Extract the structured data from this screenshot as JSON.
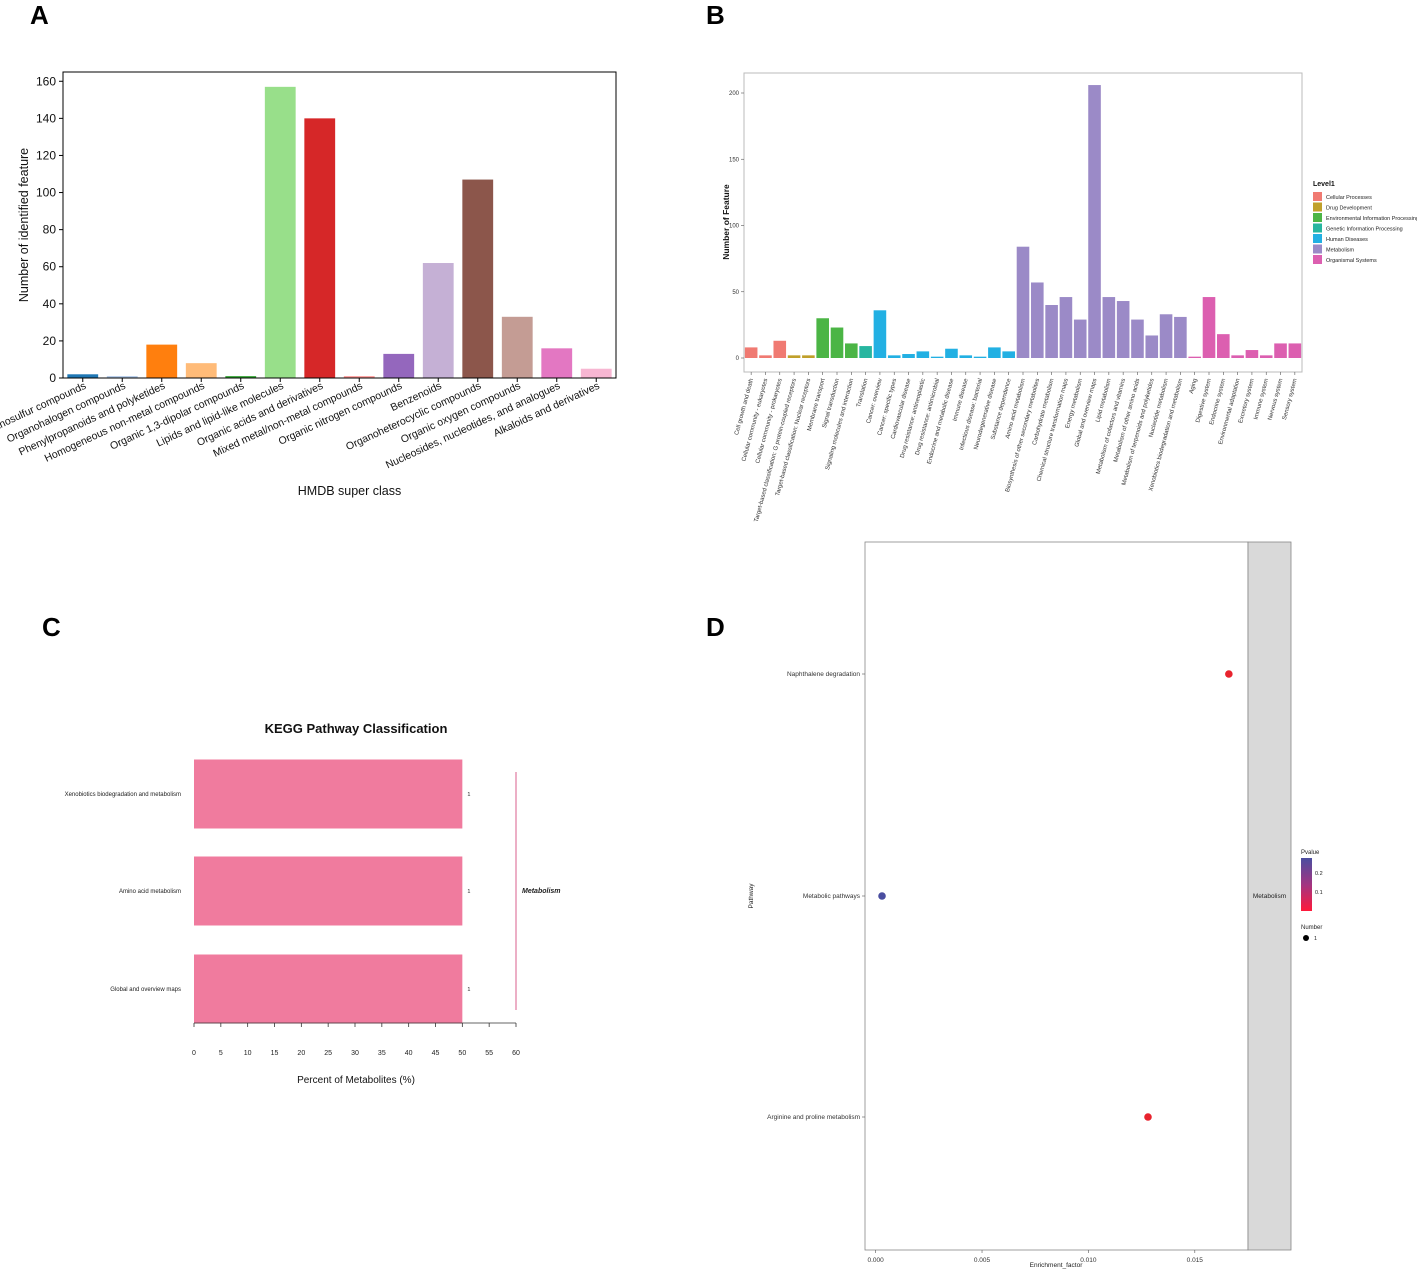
{
  "panels": {
    "a": "A",
    "b": "B",
    "c": "C",
    "d": "D"
  },
  "chart_data": [
    {
      "type": "bar",
      "panel": "A",
      "categories": [
        "Organosulfur compounds",
        "Organohalogen compounds",
        "Phenylpropanoids and polyketides",
        "Homogeneous non-metal compounds",
        "Organic 1,3-dipolar compounds",
        "Lipids and lipid-like molecules",
        "Organic acids and derivatives",
        "Mixed metal/non-metal compounds",
        "Organic nitrogen compounds",
        "Benzenoids",
        "Organoheterocyclic compounds",
        "Organic oxygen compounds",
        "Nucleosides, nucleotides, and analogues",
        "Alkaloids and derivatives"
      ],
      "values": [
        2,
        1,
        18,
        8,
        1,
        157,
        140,
        1,
        13,
        62,
        107,
        33,
        16,
        5
      ],
      "colors": [
        "#1f77b4",
        "#aec7e8",
        "#ff7f0e",
        "#ffbb78",
        "#2ca02c",
        "#98df8a",
        "#d62728",
        "#ff9896",
        "#9467bd",
        "#c5b0d5",
        "#8c564b",
        "#c49c94",
        "#e377c2",
        "#f7b6d2"
      ],
      "xlabel": "HMDB super class",
      "ylabel": "Number of identified feature",
      "ylim": [
        0,
        165
      ],
      "yticks": [
        0,
        20,
        40,
        60,
        80,
        100,
        120,
        140,
        160
      ]
    },
    {
      "type": "bar",
      "panel": "B",
      "categories": [
        "Cell growth and death",
        "Cellular community - eukaryotes",
        "Cellular community - prokaryotes",
        "Target-based classification: G protein-coupled receptors",
        "Target-based classification: Nuclear receptors",
        "Membrane transport",
        "Signal transduction",
        "Signaling molecules and interaction",
        "Translation",
        "Cancer: overview",
        "Cancer: specific types",
        "Cardiovascular disease",
        "Drug resistance: antineoplastic",
        "Drug resistance: antimicrobial",
        "Endocrine and metabolic disease",
        "Immune disease",
        "Infectious disease: bacterial",
        "Neurodegenerative disease",
        "Substance dependence",
        "Amino acid metabolism",
        "Biosynthesis of other secondary metabolites",
        "Carbohydrate metabolism",
        "Chemical structure transformation maps",
        "Energy metabolism",
        "Global and overview maps",
        "Lipid metabolism",
        "Metabolism of cofactors and vitamins",
        "Metabolism of other amino acids",
        "Metabolism of terpenoids and polyketides",
        "Nucleotide metabolism",
        "Xenobiotics biodegradation and metabolism",
        "Aging",
        "Digestive system",
        "Endocrine system",
        "Environmental adaptation",
        "Excretory system",
        "Immune system",
        "Nervous system",
        "Sensory system"
      ],
      "values": [
        8,
        2,
        13,
        2,
        2,
        30,
        23,
        11,
        9,
        36,
        2,
        3,
        5,
        1,
        7,
        2,
        1,
        8,
        5,
        84,
        57,
        40,
        46,
        29,
        206,
        46,
        43,
        29,
        17,
        33,
        31,
        1,
        46,
        18,
        2,
        6,
        2,
        11,
        11
      ],
      "groups": [
        "Cellular Processes",
        "Cellular Processes",
        "Cellular Processes",
        "Drug Development",
        "Drug Development",
        "Environmental Information Processing",
        "Environmental Information Processing",
        "Environmental Information Processing",
        "Genetic Information Processing",
        "Human Diseases",
        "Human Diseases",
        "Human Diseases",
        "Human Diseases",
        "Human Diseases",
        "Human Diseases",
        "Human Diseases",
        "Human Diseases",
        "Human Diseases",
        "Human Diseases",
        "Metabolism",
        "Metabolism",
        "Metabolism",
        "Metabolism",
        "Metabolism",
        "Metabolism",
        "Metabolism",
        "Metabolism",
        "Metabolism",
        "Metabolism",
        "Metabolism",
        "Metabolism",
        "Organismal Systems",
        "Organismal Systems",
        "Organismal Systems",
        "Organismal Systems",
        "Organismal Systems",
        "Organismal Systems",
        "Organismal Systems",
        "Organismal Systems"
      ],
      "legend_title": "Level1",
      "legend": [
        {
          "name": "Cellular Processes",
          "color": "#f07a72"
        },
        {
          "name": "Drug Development",
          "color": "#c0a02a"
        },
        {
          "name": "Environmental Information Processing",
          "color": "#4bb545"
        },
        {
          "name": "Genetic Information Processing",
          "color": "#27b6a0"
        },
        {
          "name": "Human Diseases",
          "color": "#22b0e3"
        },
        {
          "name": "Metabolism",
          "color": "#9b8ac7"
        },
        {
          "name": "Organismal Systems",
          "color": "#dc5fb0"
        }
      ],
      "ylabel": "Number of Feature",
      "ylim": [
        0,
        216
      ],
      "yticks": [
        0,
        50,
        100,
        150,
        200
      ]
    },
    {
      "type": "bar",
      "panel": "C",
      "orientation": "horizontal",
      "title": "KEGG Pathway Classification",
      "categories": [
        "Xenobiotics biodegradation and metabolism",
        "Amino acid metabolism",
        "Global and overview maps"
      ],
      "values": [
        50,
        50,
        50
      ],
      "data_labels": [
        "1",
        "1",
        "1"
      ],
      "bar_color": "#f07b9e",
      "group_label": "Metabolism",
      "xlabel": "Percent of Metabolites (%)",
      "xlim": [
        0,
        60
      ],
      "xticks": [
        0,
        5,
        10,
        15,
        20,
        25,
        30,
        35,
        40,
        45,
        50,
        55,
        60
      ]
    },
    {
      "type": "scatter",
      "panel": "D",
      "categories": [
        "Naphthalene degradation",
        "Metabolic pathways",
        "Arginine and proline metabolism"
      ],
      "x": [
        0.0166,
        0.0003,
        0.0128
      ],
      "pvalue": [
        0.02,
        0.25,
        0.02
      ],
      "point_colors": [
        "#e8232e",
        "#4a4ea0",
        "#e8232e"
      ],
      "xlabel": "Enrichment_factor",
      "ylabel": "Pathway",
      "xlim": [
        -0.0005,
        0.0175
      ],
      "xticks": [
        0.0,
        0.005,
        0.01,
        0.015
      ],
      "xtick_labels": [
        "0.000",
        "0.005",
        "0.010",
        "0.015"
      ],
      "facet_label": "Metabolism",
      "legend_pvalue_title": "Pvalue",
      "legend_pvalue_ticks": [
        "0.2",
        "0.1"
      ],
      "legend_number_title": "Number",
      "legend_number_value": "1"
    }
  ]
}
